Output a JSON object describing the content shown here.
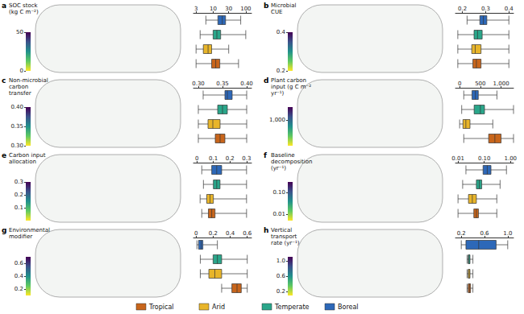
{
  "chart_data": [
    {
      "type": "boxplot",
      "panel": "a",
      "title": "SOC stock\n(kg C m⁻²)",
      "orientation": "horizontal",
      "legend": "bottom",
      "tick_labels": "x",
      "log": "x",
      "xlim": [
        2.5,
        150
      ],
      "xticks": [
        3,
        10,
        30,
        100
      ],
      "colorbar": {
        "range": [
          0,
          50
        ],
        "ticks": [
          0,
          50
        ]
      },
      "series": [
        {
          "name": "Tropical",
          "color": "#c8651b",
          "values": [
            3,
            9,
            12,
            16,
            60
          ]
        },
        {
          "name": "Arid",
          "color": "#e8b52a",
          "values": [
            3,
            5,
            7,
            9,
            30
          ]
        },
        {
          "name": "Temperate",
          "color": "#2aa68a",
          "values": [
            4,
            10,
            13,
            17,
            100
          ]
        },
        {
          "name": "Boreal",
          "color": "#2d68b8",
          "values": [
            6,
            14,
            19,
            24,
            70
          ]
        }
      ]
    },
    {
      "type": "boxplot",
      "panel": "b",
      "title": "Microbial\nCUE",
      "orientation": "horizontal",
      "tick_labels": "x",
      "xlim": [
        0.17,
        0.42
      ],
      "xticks": [
        0.2,
        0.3,
        0.4
      ],
      "colorbar": {
        "range": [
          0.2,
          0.4
        ],
        "ticks": [
          0.2,
          0.4
        ]
      },
      "series": [
        {
          "name": "Tropical",
          "color": "#c8651b",
          "values": [
            0.18,
            0.245,
            0.26,
            0.28,
            0.4
          ]
        },
        {
          "name": "Arid",
          "color": "#e8b52a",
          "values": [
            0.18,
            0.24,
            0.255,
            0.28,
            0.4
          ]
        },
        {
          "name": "Temperate",
          "color": "#2aa68a",
          "values": [
            0.18,
            0.25,
            0.265,
            0.285,
            0.4
          ]
        },
        {
          "name": "Boreal",
          "color": "#2d68b8",
          "values": [
            0.22,
            0.275,
            0.29,
            0.305,
            0.4
          ]
        }
      ]
    },
    {
      "type": "boxplot",
      "panel": "c",
      "title": "Non-microbial\ncarbon\ntransfer",
      "orientation": "horizontal",
      "tick_labels": "x",
      "xlim": [
        0.29,
        0.41
      ],
      "xticks": [
        {
          "value": 0.3,
          "label": "0.30"
        },
        0.35,
        {
          "value": 0.4,
          "label": "0.40"
        }
      ],
      "colorbar": {
        "range": [
          0.3,
          0.4
        ],
        "ticks": [
          {
            "value": 0.3,
            "label": "0.30"
          },
          0.35,
          {
            "value": 0.4,
            "label": "0.40"
          }
        ]
      },
      "series": [
        {
          "name": "Tropical",
          "color": "#c8651b",
          "values": [
            0.3,
            0.335,
            0.345,
            0.355,
            0.4
          ]
        },
        {
          "name": "Arid",
          "color": "#e8b52a",
          "values": [
            0.3,
            0.32,
            0.33,
            0.345,
            0.4
          ]
        },
        {
          "name": "Temperate",
          "color": "#2aa68a",
          "values": [
            0.3,
            0.34,
            0.35,
            0.36,
            0.4
          ]
        },
        {
          "name": "Boreal",
          "color": "#2d68b8",
          "values": [
            0.31,
            0.355,
            0.36,
            0.37,
            0.4
          ]
        }
      ]
    },
    {
      "type": "boxplot",
      "panel": "d",
      "title": "Plant carbon\ninput (g C m⁻²\nyr⁻¹)",
      "orientation": "horizontal",
      "tick_labels": "x",
      "xlim": [
        -100,
        1300
      ],
      "xticks": [
        0,
        500,
        {
          "value": 1000,
          "label": "1,000"
        }
      ],
      "colorbar": {
        "range": [
          0,
          1500
        ],
        "ticks": [
          {
            "value": 1000,
            "label": "1,000"
          }
        ]
      },
      "series": [
        {
          "name": "Tropical",
          "color": "#c8651b",
          "values": [
            100,
            700,
            850,
            1000,
            1300
          ]
        },
        {
          "name": "Arid",
          "color": "#e8b52a",
          "values": [
            0,
            80,
            150,
            250,
            800
          ]
        },
        {
          "name": "Temperate",
          "color": "#2aa68a",
          "values": [
            50,
            350,
            500,
            600,
            1300
          ]
        },
        {
          "name": "Boreal",
          "color": "#2d68b8",
          "values": [
            100,
            300,
            380,
            450,
            900
          ]
        }
      ]
    },
    {
      "type": "boxplot",
      "panel": "e",
      "title": "Carbon input\nallocation",
      "orientation": "horizontal",
      "tick_labels": "x",
      "xlim": [
        -0.02,
        0.33
      ],
      "xticks": [
        0,
        0.1,
        0.2,
        0.3
      ],
      "colorbar": {
        "range": [
          0,
          0.3
        ],
        "ticks": [
          0.1,
          0.2,
          0.3
        ]
      },
      "series": [
        {
          "name": "Tropical",
          "color": "#c8651b",
          "values": [
            0.03,
            0.07,
            0.09,
            0.11,
            0.3
          ]
        },
        {
          "name": "Arid",
          "color": "#e8b52a",
          "values": [
            0.02,
            0.06,
            0.08,
            0.1,
            0.3
          ]
        },
        {
          "name": "Temperate",
          "color": "#2aa68a",
          "values": [
            0.04,
            0.1,
            0.12,
            0.14,
            0.3
          ]
        },
        {
          "name": "Boreal",
          "color": "#2d68b8",
          "values": [
            0.03,
            0.09,
            0.12,
            0.15,
            0.3
          ]
        }
      ]
    },
    {
      "type": "boxplot",
      "panel": "f",
      "title": "Baseline\ndecomposition\n(yr⁻¹)",
      "orientation": "horizontal",
      "tick_labels": "x",
      "log": "x",
      "xlim": [
        0.008,
        1.3
      ],
      "xticks": [
        {
          "value": 0.01,
          "label": "0.01"
        },
        {
          "value": 0.1,
          "label": "0.10"
        },
        {
          "value": 1,
          "label": "1.00"
        }
      ],
      "colorbar": {
        "range": [
          0.005,
          0.3
        ],
        "log": true,
        "ticks": [
          {
            "value": 0.01,
            "label": "0.01"
          },
          {
            "value": 0.1,
            "label": "0.10"
          }
        ]
      },
      "series": [
        {
          "name": "Tropical",
          "color": "#c8651b",
          "values": [
            0.01,
            0.04,
            0.05,
            0.06,
            0.3
          ]
        },
        {
          "name": "Arid",
          "color": "#e8b52a",
          "values": [
            0.01,
            0.025,
            0.035,
            0.05,
            0.3
          ]
        },
        {
          "name": "Temperate",
          "color": "#2aa68a",
          "values": [
            0.015,
            0.05,
            0.065,
            0.08,
            0.4
          ]
        },
        {
          "name": "Boreal",
          "color": "#2d68b8",
          "values": [
            0.02,
            0.09,
            0.13,
            0.18,
            0.7
          ]
        }
      ]
    },
    {
      "type": "boxplot",
      "panel": "g",
      "title": "Environmental\nmodifier",
      "orientation": "horizontal",
      "tick_labels": "x",
      "xlim": [
        -0.03,
        0.65
      ],
      "xticks": [
        0,
        0.2,
        0.4,
        0.6
      ],
      "colorbar": {
        "range": [
          0.1,
          0.7
        ],
        "ticks": [
          0.2,
          0.4,
          0.6
        ]
      },
      "series": [
        {
          "name": "Tropical",
          "color": "#c8651b",
          "values": [
            0.3,
            0.42,
            0.48,
            0.53,
            0.6
          ]
        },
        {
          "name": "Arid",
          "color": "#e8b52a",
          "values": [
            0.05,
            0.15,
            0.22,
            0.3,
            0.6
          ]
        },
        {
          "name": "Temperate",
          "color": "#2aa68a",
          "values": [
            0.05,
            0.2,
            0.25,
            0.3,
            0.6
          ]
        },
        {
          "name": "Boreal",
          "color": "#2d68b8",
          "values": [
            0.01,
            0.03,
            0.06,
            0.08,
            0.25
          ]
        }
      ]
    },
    {
      "type": "boxplot",
      "panel": "h",
      "title": "Vertical\ntransport\nrate (yr⁻¹)",
      "orientation": "horizontal",
      "tick_labels": "x",
      "xlim": [
        0.1,
        1.1
      ],
      "xticks": [
        0.2,
        0.6,
        {
          "value": 1,
          "label": "1.0"
        }
      ],
      "colorbar": {
        "range": [
          0.1,
          1.1
        ],
        "ticks": [
          0.2,
          0.6,
          {
            "value": 1,
            "label": "1.0"
          }
        ]
      },
      "series": [
        {
          "name": "Tropical",
          "color": "#c8651b",
          "values": [
            0.3,
            0.32,
            0.34,
            0.36,
            0.4
          ]
        },
        {
          "name": "Arid",
          "color": "#e8b52a",
          "values": [
            0.3,
            0.32,
            0.335,
            0.35,
            0.4
          ]
        },
        {
          "name": "Temperate",
          "color": "#2aa68a",
          "values": [
            0.3,
            0.32,
            0.33,
            0.35,
            0.4
          ]
        },
        {
          "name": "Boreal",
          "color": "#2d68b8",
          "values": [
            0.2,
            0.28,
            0.5,
            0.8,
            1.0
          ]
        }
      ]
    }
  ]
}
